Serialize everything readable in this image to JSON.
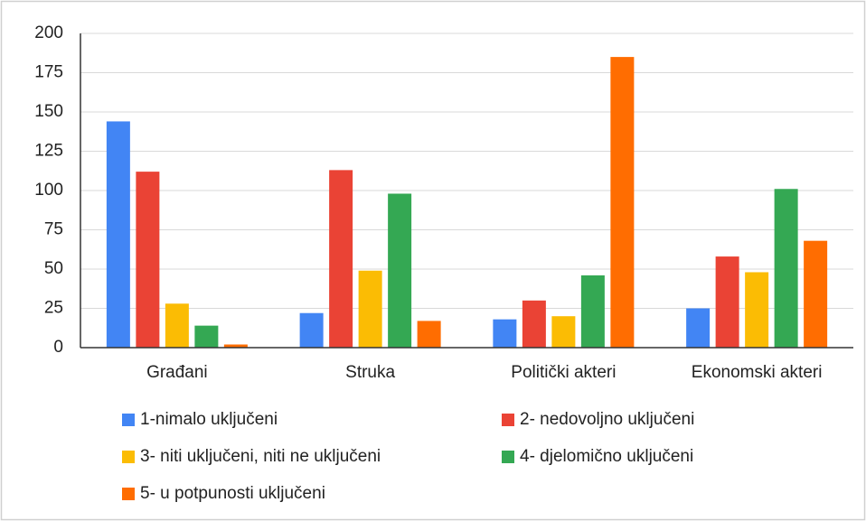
{
  "chart_data": {
    "type": "bar",
    "categories": [
      "Građani",
      "Struka",
      "Politički akteri",
      "Ekonomski akteri"
    ],
    "series": [
      {
        "name": "1-nimalo uključeni",
        "color": "#4285f4",
        "values": [
          144,
          22,
          18,
          25
        ]
      },
      {
        "name": "2- nedovoljno uključeni",
        "color": "#ea4335",
        "values": [
          112,
          113,
          30,
          58
        ]
      },
      {
        "name": "3- niti uključeni, niti ne uključeni",
        "color": "#fbbc04",
        "values": [
          28,
          49,
          20,
          48
        ]
      },
      {
        "name": "4- djelomično uključeni",
        "color": "#34a853",
        "values": [
          14,
          98,
          46,
          101
        ]
      },
      {
        "name": "5- u potpunosti uključeni",
        "color": "#ff6d01",
        "values": [
          2,
          17,
          185,
          68
        ]
      }
    ],
    "ylim": [
      0,
      200
    ],
    "yticks": [
      0,
      25,
      50,
      75,
      100,
      125,
      150,
      175,
      200
    ],
    "grid": true
  }
}
